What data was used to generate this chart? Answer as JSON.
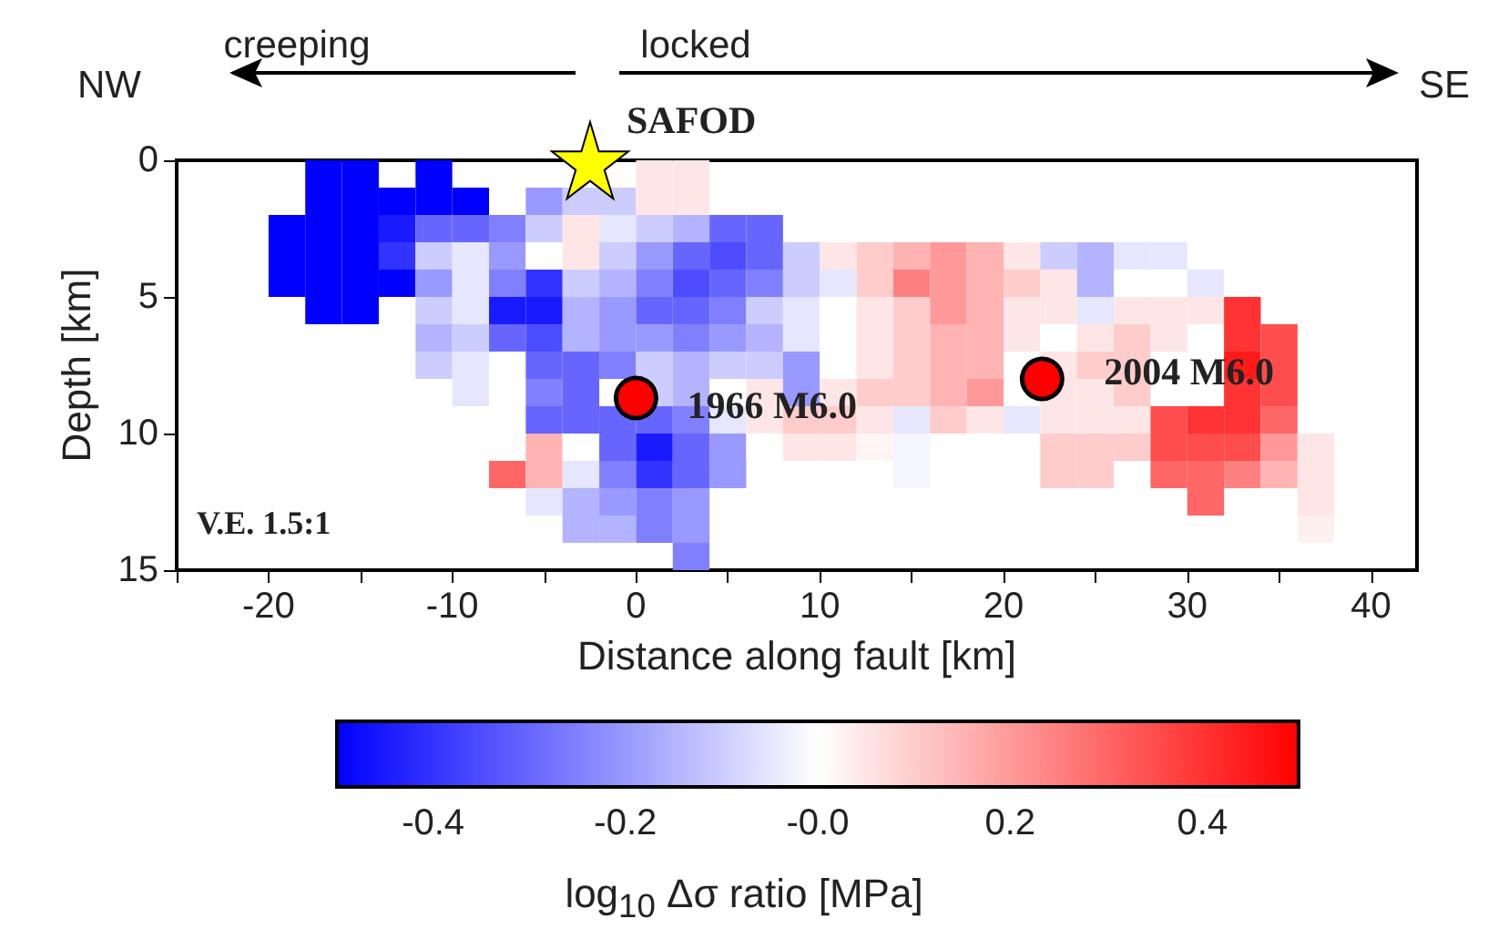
{
  "chart_data": {
    "type": "heatmap",
    "xlabel": "Distance along fault [km]",
    "ylabel": "Depth [km]",
    "clabel": "log$_{10}$ Δσ ratio [MPa]",
    "xlim": [
      -25,
      42.5
    ],
    "xticks": [
      {
        "value": -25,
        "label": null
      },
      -20,
      {
        "value": -15,
        "label": null
      },
      -10,
      {
        "value": -5,
        "label": null
      },
      0,
      {
        "value": 5,
        "label": null
      },
      10,
      {
        "value": 15,
        "label": null
      },
      20,
      {
        "value": 25,
        "label": null
      },
      30,
      {
        "value": 35,
        "label": null
      },
      40
    ],
    "ylim": [
      15,
      0
    ],
    "yticks": [
      0,
      5,
      10,
      15
    ],
    "clim": [
      -0.5,
      0.5
    ],
    "cticks": [
      -0.4,
      -0.2,
      {
        "value": 0,
        "label": "-0.0"
      },
      0.2,
      0.4
    ],
    "grid": false,
    "x": [
      -19,
      -17,
      -15,
      -13,
      -11,
      -9,
      -7,
      -5,
      -3,
      -1,
      1,
      3,
      5,
      7,
      9,
      11,
      13,
      15,
      17,
      19,
      21,
      23,
      25,
      27,
      29,
      31,
      33,
      35,
      37
    ],
    "y": [
      0.5,
      1.5,
      2.5,
      3.5,
      4.5,
      5.5,
      6.5,
      7.5,
      8.5,
      9.5,
      10.5,
      11.5,
      12.5,
      13.5,
      14.5
    ],
    "cells": [
      [
        null,
        -0.5,
        -0.5,
        null,
        -0.5,
        null,
        null,
        null,
        null,
        null,
        0.05,
        0.05,
        null,
        null,
        null,
        null,
        null,
        null,
        null,
        null,
        null,
        null,
        null,
        null,
        null,
        null,
        null,
        null,
        null
      ],
      [
        null,
        -0.5,
        -0.5,
        -0.5,
        -0.5,
        -0.5,
        null,
        -0.2,
        -0.1,
        -0.1,
        0.05,
        0.05,
        null,
        null,
        null,
        null,
        null,
        null,
        null,
        null,
        null,
        null,
        null,
        null,
        null,
        null,
        null,
        null,
        null
      ],
      [
        -0.5,
        -0.5,
        -0.5,
        -0.45,
        -0.3,
        -0.3,
        -0.25,
        -0.1,
        0.05,
        -0.05,
        -0.1,
        -0.15,
        -0.3,
        -0.3,
        null,
        null,
        null,
        null,
        null,
        null,
        null,
        null,
        null,
        null,
        null,
        null,
        null,
        null,
        null
      ],
      [
        -0.5,
        -0.5,
        -0.5,
        -0.4,
        -0.1,
        -0.05,
        -0.2,
        0,
        0.05,
        -0.1,
        -0.2,
        -0.3,
        -0.35,
        -0.3,
        -0.1,
        0.05,
        0.1,
        0.15,
        0.2,
        0.15,
        0.05,
        -0.1,
        -0.15,
        -0.05,
        -0.05,
        null,
        null,
        null,
        null
      ],
      [
        -0.5,
        -0.5,
        -0.5,
        -0.5,
        -0.2,
        -0.05,
        -0.25,
        -0.4,
        -0.1,
        -0.15,
        -0.25,
        -0.35,
        -0.3,
        -0.25,
        -0.1,
        -0.05,
        0.1,
        0.25,
        0.2,
        0.15,
        0.1,
        0.05,
        -0.15,
        0,
        0,
        -0.05,
        null,
        null,
        null
      ],
      [
        null,
        -0.5,
        -0.5,
        null,
        -0.1,
        -0.05,
        -0.45,
        -0.45,
        -0.15,
        -0.2,
        -0.3,
        -0.3,
        -0.25,
        -0.1,
        -0.05,
        0,
        0.05,
        0.1,
        0.2,
        0.15,
        0.05,
        0.05,
        -0.05,
        0.05,
        0.05,
        0.05,
        0.4,
        null,
        null
      ],
      [
        null,
        null,
        null,
        null,
        -0.15,
        -0.1,
        -0.3,
        -0.35,
        -0.15,
        -0.2,
        -0.2,
        -0.25,
        -0.2,
        -0.15,
        -0.05,
        0,
        0.05,
        0.1,
        0.15,
        0.15,
        0.05,
        0,
        0.05,
        0.1,
        0.05,
        null,
        0.4,
        0.35,
        null
      ],
      [
        null,
        null,
        null,
        null,
        -0.1,
        -0.05,
        null,
        -0.3,
        -0.3,
        -0.25,
        -0.1,
        -0.15,
        -0.1,
        -0.1,
        -0.2,
        0,
        0.05,
        0.1,
        0.15,
        0.15,
        0,
        0.05,
        0.1,
        0.1,
        null,
        null,
        0.45,
        0.35,
        null
      ],
      [
        null,
        null,
        null,
        null,
        null,
        -0.05,
        null,
        -0.25,
        -0.3,
        null,
        -0.1,
        -0.15,
        0,
        0.05,
        -0.2,
        0.05,
        0.1,
        0.1,
        0.15,
        0.2,
        0,
        0.05,
        0.05,
        0.1,
        null,
        null,
        0.4,
        0.35,
        null
      ],
      [
        null,
        null,
        null,
        null,
        null,
        null,
        null,
        -0.3,
        -0.3,
        -0.3,
        -0.3,
        -0.25,
        -0.05,
        0.05,
        0.1,
        0.1,
        0.05,
        -0.05,
        0.1,
        0.05,
        -0.05,
        0.05,
        0.05,
        0.05,
        0.35,
        0.4,
        0.4,
        0.3,
        null
      ],
      [
        null,
        null,
        null,
        null,
        null,
        null,
        null,
        0.15,
        0,
        -0.3,
        -0.45,
        -0.3,
        -0.2,
        0,
        0.05,
        0.05,
        0.02,
        -0.02,
        null,
        null,
        null,
        0.1,
        0.1,
        0.1,
        0.35,
        0.35,
        0.35,
        0.2,
        0.05
      ],
      [
        null,
        null,
        null,
        null,
        null,
        null,
        0.3,
        0.15,
        -0.05,
        -0.25,
        -0.4,
        -0.3,
        -0.2,
        null,
        null,
        null,
        null,
        -0.02,
        null,
        null,
        null,
        0.1,
        0.1,
        null,
        0.3,
        0.3,
        0.25,
        0.15,
        0.05
      ],
      [
        null,
        null,
        null,
        null,
        null,
        null,
        null,
        -0.05,
        -0.15,
        -0.2,
        -0.25,
        -0.2,
        null,
        null,
        null,
        null,
        null,
        null,
        null,
        null,
        null,
        null,
        null,
        null,
        null,
        0.3,
        null,
        null,
        0.05
      ],
      [
        null,
        null,
        null,
        null,
        null,
        null,
        null,
        null,
        -0.15,
        -0.15,
        -0.25,
        -0.2,
        null,
        null,
        null,
        null,
        null,
        null,
        null,
        null,
        null,
        null,
        null,
        null,
        null,
        null,
        null,
        null,
        0.03
      ],
      [
        null,
        null,
        null,
        null,
        null,
        null,
        null,
        null,
        null,
        null,
        null,
        -0.25,
        null,
        null,
        null,
        null,
        null,
        null,
        null,
        null,
        null,
        null,
        null,
        null,
        null,
        null,
        null,
        null,
        null
      ]
    ],
    "series": [
      {
        "type": "scatter",
        "marker": "star",
        "color": "#ffff00",
        "x": [
          -2.5
        ],
        "values": [
          0
        ]
      },
      {
        "type": "scatter",
        "marker": "circle",
        "color": "#ff0000",
        "x": [
          0,
          22.1
        ],
        "values": [
          8.7,
          8
        ]
      }
    ],
    "annotations": [
      "NW",
      "creeping",
      "locked",
      "SE",
      "V.E. 1.5:1",
      {
        "text": "SAFOD",
        "x": -2.5,
        "y": 0
      },
      {
        "text": "1966 M6.0",
        "x": 0,
        "y": 8.7
      },
      {
        "text": "2004 M6.0",
        "x": 22.1,
        "y": 8
      }
    ]
  }
}
